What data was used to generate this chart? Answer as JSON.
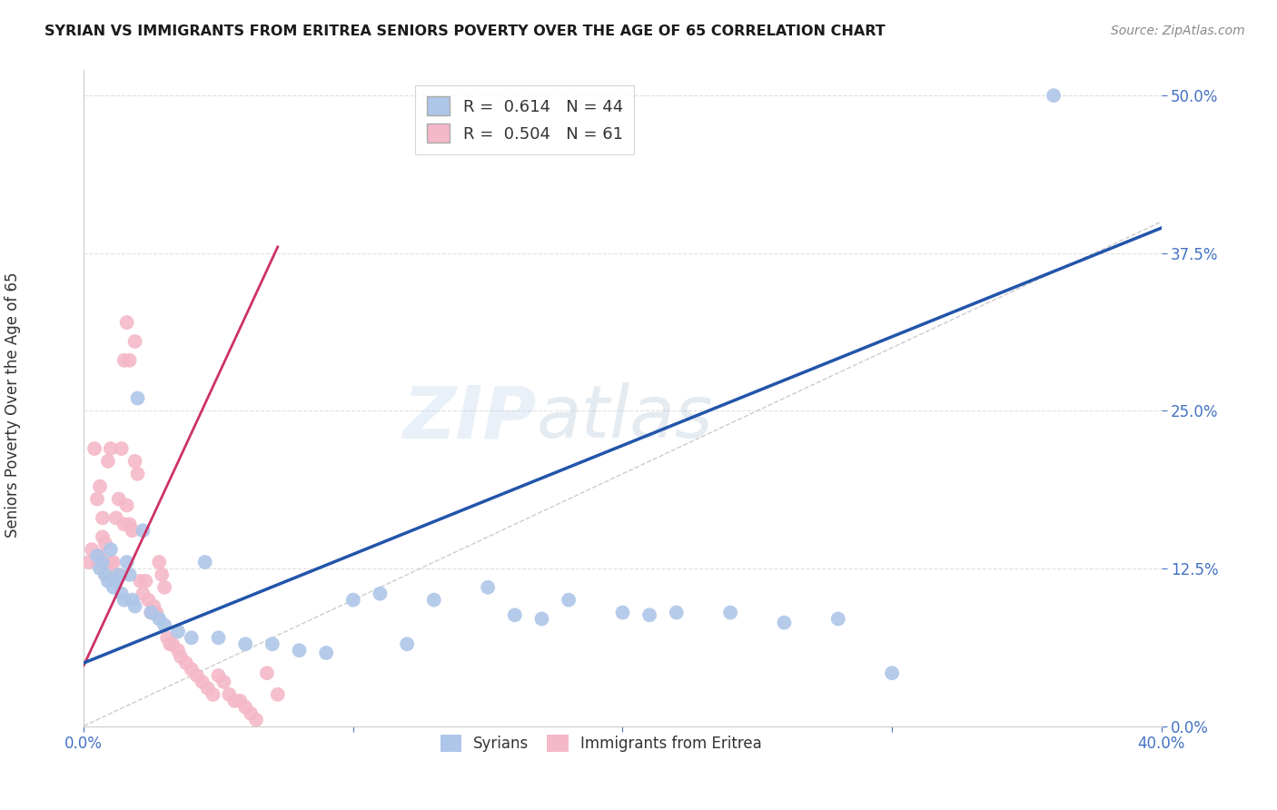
{
  "title": "SYRIAN VS IMMIGRANTS FROM ERITREA SENIORS POVERTY OVER THE AGE OF 65 CORRELATION CHART",
  "source": "Source: ZipAtlas.com",
  "ylabel": "Seniors Poverty Over the Age of 65",
  "xlim": [
    0.0,
    0.4
  ],
  "ylim": [
    0.0,
    0.52
  ],
  "watermark_zip": "ZIP",
  "watermark_atlas": "atlas",
  "legend_label_1": "R =  0.614   N = 44",
  "legend_label_2": "R =  0.504   N = 61",
  "legend_label_syrians": "Syrians",
  "legend_label_eritrea": "Immigrants from Eritrea",
  "blue_scatter_x": [
    0.005,
    0.006,
    0.007,
    0.008,
    0.009,
    0.01,
    0.011,
    0.012,
    0.013,
    0.014,
    0.015,
    0.016,
    0.017,
    0.018,
    0.019,
    0.02,
    0.022,
    0.025,
    0.028,
    0.03,
    0.035,
    0.04,
    0.045,
    0.05,
    0.06,
    0.07,
    0.08,
    0.09,
    0.1,
    0.11,
    0.12,
    0.13,
    0.15,
    0.16,
    0.17,
    0.18,
    0.2,
    0.21,
    0.22,
    0.24,
    0.26,
    0.28,
    0.3,
    0.36
  ],
  "blue_scatter_y": [
    0.135,
    0.125,
    0.13,
    0.12,
    0.115,
    0.14,
    0.11,
    0.115,
    0.12,
    0.105,
    0.1,
    0.13,
    0.12,
    0.1,
    0.095,
    0.26,
    0.155,
    0.09,
    0.085,
    0.08,
    0.075,
    0.07,
    0.13,
    0.07,
    0.065,
    0.065,
    0.06,
    0.058,
    0.1,
    0.105,
    0.065,
    0.1,
    0.11,
    0.088,
    0.085,
    0.1,
    0.09,
    0.088,
    0.09,
    0.09,
    0.082,
    0.085,
    0.042,
    0.5
  ],
  "pink_scatter_x": [
    0.002,
    0.003,
    0.004,
    0.005,
    0.005,
    0.006,
    0.006,
    0.007,
    0.007,
    0.008,
    0.008,
    0.009,
    0.01,
    0.01,
    0.011,
    0.012,
    0.012,
    0.013,
    0.013,
    0.014,
    0.015,
    0.015,
    0.016,
    0.016,
    0.017,
    0.017,
    0.018,
    0.019,
    0.019,
    0.02,
    0.021,
    0.022,
    0.023,
    0.024,
    0.025,
    0.026,
    0.027,
    0.028,
    0.029,
    0.03,
    0.031,
    0.032,
    0.033,
    0.035,
    0.036,
    0.038,
    0.04,
    0.042,
    0.044,
    0.046,
    0.048,
    0.05,
    0.052,
    0.054,
    0.056,
    0.058,
    0.06,
    0.062,
    0.064,
    0.068,
    0.072
  ],
  "pink_scatter_y": [
    0.13,
    0.14,
    0.22,
    0.13,
    0.18,
    0.135,
    0.19,
    0.15,
    0.165,
    0.12,
    0.145,
    0.21,
    0.13,
    0.22,
    0.13,
    0.12,
    0.165,
    0.12,
    0.18,
    0.22,
    0.16,
    0.29,
    0.175,
    0.32,
    0.16,
    0.29,
    0.155,
    0.305,
    0.21,
    0.2,
    0.115,
    0.105,
    0.115,
    0.1,
    0.09,
    0.095,
    0.09,
    0.13,
    0.12,
    0.11,
    0.07,
    0.065,
    0.065,
    0.06,
    0.055,
    0.05,
    0.045,
    0.04,
    0.035,
    0.03,
    0.025,
    0.04,
    0.035,
    0.025,
    0.02,
    0.02,
    0.015,
    0.01,
    0.005,
    0.042,
    0.025
  ],
  "blue_line_x": [
    0.0,
    0.4
  ],
  "blue_line_y": [
    0.05,
    0.395
  ],
  "pink_line_x": [
    0.0,
    0.072
  ],
  "pink_line_y": [
    0.048,
    0.38
  ],
  "diagonal_line_x": [
    0.0,
    0.4
  ],
  "diagonal_line_y": [
    0.0,
    0.4
  ],
  "title_color": "#1a1a1a",
  "source_color": "#888888",
  "axis_color": "#4472c4",
  "scatter_blue_color": "#aec6e8",
  "scatter_pink_color": "#f4b8c8",
  "line_blue_color": "#2255aa",
  "line_pink_color": "#cc3366",
  "diagonal_color": "#cccccc",
  "grid_color": "#e0e0e0",
  "background_color": "#ffffff",
  "legend_text_color": "#333333",
  "legend_value_color": "#4472c4"
}
